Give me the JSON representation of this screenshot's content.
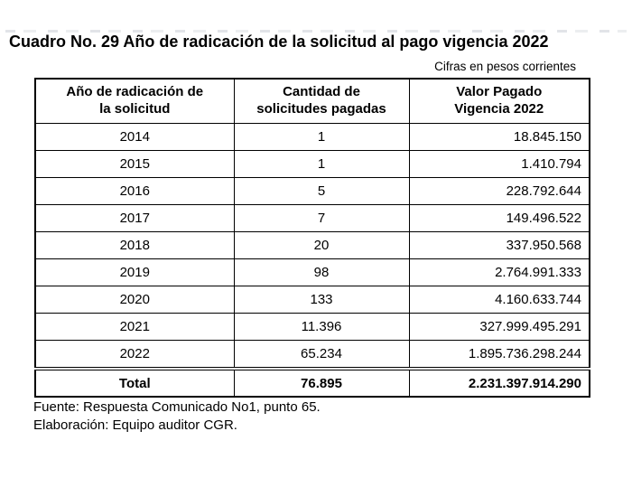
{
  "title": "Cuadro No. 29 Año de radicación de la solicitud al pago vigencia 2022",
  "subtitle": "Cifras en pesos corrientes",
  "table": {
    "headers": [
      [
        "Año de radicación de",
        "la solicitud"
      ],
      [
        "Cantidad de",
        "solicitudes pagadas"
      ],
      [
        "Valor Pagado",
        "Vigencia 2022"
      ]
    ],
    "rows": [
      [
        "2014",
        "1",
        "18.845.150"
      ],
      [
        "2015",
        "1",
        "1.410.794"
      ],
      [
        "2016",
        "5",
        "228.792.644"
      ],
      [
        "2017",
        "7",
        "149.496.522"
      ],
      [
        "2018",
        "20",
        "337.950.568"
      ],
      [
        "2019",
        "98",
        "2.764.991.333"
      ],
      [
        "2020",
        "133",
        "4.160.633.744"
      ],
      [
        "2021",
        "11.396",
        "327.999.495.291"
      ],
      [
        "2022",
        "65.234",
        "1.895.736.298.244"
      ]
    ],
    "total": [
      "Total",
      "76.895",
      "2.231.397.914.290"
    ]
  },
  "footer": {
    "source": "Fuente: Respuesta Comunicado No1, punto 65.",
    "elaboration": "Elaboración: Equipo auditor CGR."
  }
}
